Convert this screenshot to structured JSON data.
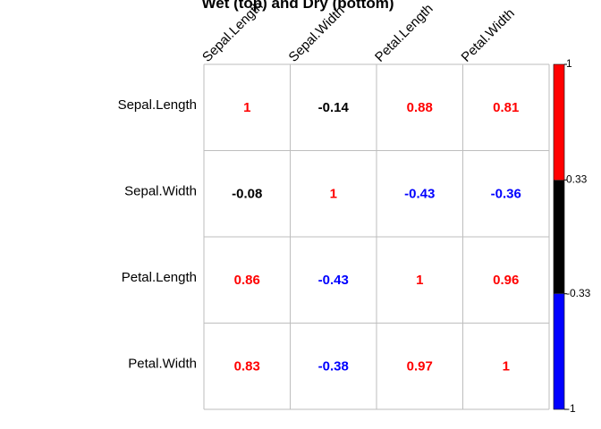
{
  "chart_data": {
    "type": "heatmap",
    "title": "Wet (top) and Dry (bottom)",
    "variables": [
      "Sepal.Length",
      "Sepal.Width",
      "Petal.Length",
      "Petal.Width"
    ],
    "matrix": [
      [
        1,
        -0.14,
        0.88,
        0.81
      ],
      [
        -0.08,
        1,
        -0.43,
        -0.36
      ],
      [
        0.86,
        -0.43,
        1,
        0.96
      ],
      [
        0.83,
        -0.38,
        0.97,
        1
      ]
    ],
    "matrix_labels": [
      [
        "1",
        "-0.14",
        "0.88",
        "0.81"
      ],
      [
        "-0.08",
        "1",
        "-0.43",
        "-0.36"
      ],
      [
        "0.86",
        "-0.43",
        "1",
        "0.96"
      ],
      [
        "0.83",
        "-0.38",
        "0.97",
        "1"
      ]
    ],
    "color_thresholds": [
      -0.33,
      0.33
    ],
    "colors": {
      "negative": "#0000ff",
      "neutral": "#000000",
      "positive": "#ff0000",
      "grid": "#bebebe"
    },
    "legend": {
      "range": [
        -1,
        1
      ],
      "bands": [
        {
          "from": -1,
          "to": -0.33,
          "color": "#0000ff"
        },
        {
          "from": -0.33,
          "to": 0.33,
          "color": "#000000"
        },
        {
          "from": 0.33,
          "to": 1,
          "color": "#ff0000"
        }
      ],
      "tick_values": [
        1,
        0.33,
        -0.33,
        -1
      ],
      "tick_labels": [
        "1",
        "0.33",
        "-0.33",
        "-1"
      ],
      "placement": "right"
    }
  }
}
